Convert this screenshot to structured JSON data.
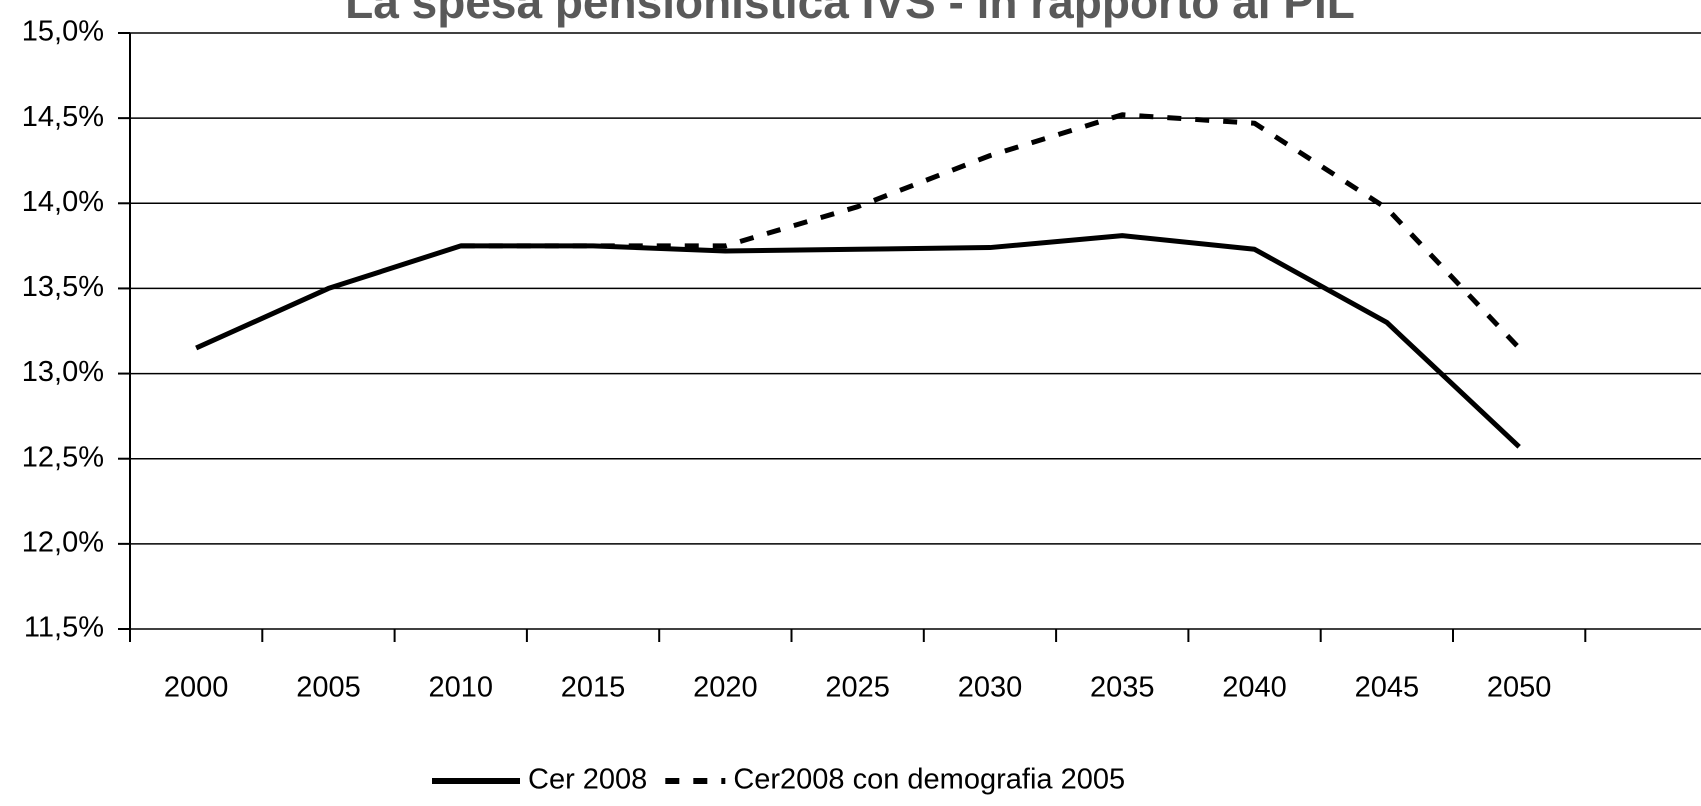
{
  "chart_data": {
    "type": "line",
    "title": "La spesa pensionistica IVS - in rapporto al PIL",
    "categories": [
      "2000",
      "2005",
      "2010",
      "2015",
      "2020",
      "2025",
      "2030",
      "2035",
      "2040",
      "2045",
      "2050"
    ],
    "series": [
      {
        "name": "Cer 2008",
        "color": "#000000",
        "line_style": "solid",
        "values": [
          13.15,
          13.5,
          13.75,
          13.75,
          13.72,
          13.73,
          13.74,
          13.81,
          13.73,
          13.3,
          12.57
        ]
      },
      {
        "name": "Cer2008 con demografia 2005",
        "color": "#000000",
        "line_style": "dashed",
        "values": [
          null,
          null,
          13.75,
          13.75,
          13.75,
          13.98,
          14.28,
          14.52,
          14.47,
          13.97,
          13.15
        ]
      }
    ],
    "ylim": [
      11.5,
      15.0
    ],
    "yticks": [
      {
        "value": 11.5,
        "label": "11,5%"
      },
      {
        "value": 12.0,
        "label": "12,0%"
      },
      {
        "value": 12.5,
        "label": "12,5%"
      },
      {
        "value": 13.0,
        "label": "13,0%"
      },
      {
        "value": 13.5,
        "label": "13,5%"
      },
      {
        "value": 14.0,
        "label": "14,0%"
      },
      {
        "value": 14.5,
        "label": "14,5%"
      },
      {
        "value": 15.0,
        "label": "15,0%"
      }
    ],
    "grid": true,
    "legend": "bottom"
  }
}
